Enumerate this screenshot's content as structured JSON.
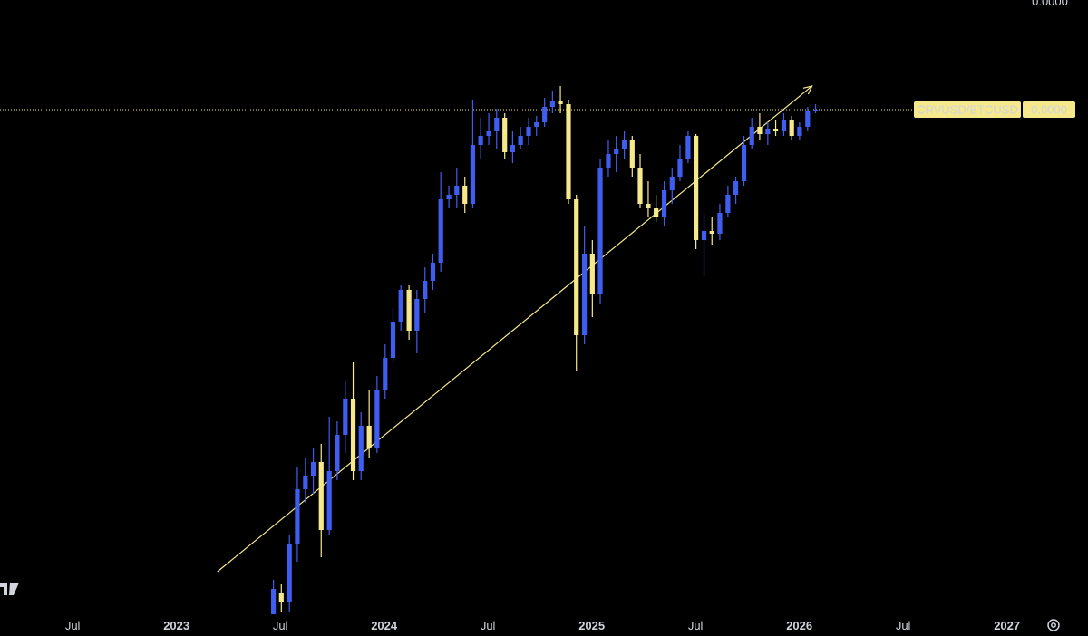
{
  "chart_data": {
    "type": "candlestick",
    "symbol": "CRVUSD/BTCUSD",
    "up_color": "#3f5ef0",
    "down_color": "#f6e98c",
    "xlim": [
      2022.15,
      2027.15
    ],
    "xticks": [
      {
        "value": 2022.5,
        "label": "Jul"
      },
      2023,
      {
        "value": 2023.5,
        "label": "Jul"
      },
      2024,
      {
        "value": 2024.5,
        "label": "Jul"
      },
      2025,
      {
        "value": 2025.5,
        "label": "Jul"
      },
      2026,
      {
        "value": 2026.5,
        "label": "Jul"
      },
      2027
    ],
    "ylim": [
      0,
      3.39e-05
    ],
    "yticks": [
      {
        "value": 3.38e-05,
        "label": "0.0000"
      }
    ],
    "last_price": 2.785e-05,
    "last_price_label": "0.0000",
    "trendline": {
      "x": [
        2023.197,
        2026.061
      ],
      "y": [
        2.35e-06,
        2.915e-05
      ],
      "color": "#f6e98c"
    },
    "x": [
      2023.467,
      2023.505,
      2023.544,
      2023.582,
      2023.621,
      2023.659,
      2023.697,
      2023.736,
      2023.774,
      2023.813,
      2023.851,
      2023.889,
      2023.928,
      2023.966,
      2024.005,
      2024.043,
      2024.081,
      2024.12,
      2024.158,
      2024.197,
      2024.235,
      2024.273,
      2024.312,
      2024.35,
      2024.389,
      2024.427,
      2024.465,
      2024.504,
      2024.542,
      2024.581,
      2024.619,
      2024.657,
      2024.696,
      2024.734,
      2024.773,
      2024.811,
      2024.849,
      2024.888,
      2024.926,
      2024.965,
      2025.003,
      2025.041,
      2025.08,
      2025.118,
      2025.157,
      2025.195,
      2025.233,
      2025.272,
      2025.31,
      2025.349,
      2025.387,
      2025.425,
      2025.464,
      2025.502,
      2025.541,
      2025.579,
      2025.617,
      2025.656,
      2025.694,
      2025.733,
      2025.771,
      2025.809,
      2025.848,
      2025.886,
      2025.925,
      2025.963,
      2026.001,
      2026.04,
      2026.078
    ],
    "open": [
      0,
      1.15e-06,
      6.5e-07,
      3.9e-06,
      6.9e-06,
      7.65e-06,
      8.4e-06,
      4.65e-06,
      7.9e-06,
      9.9e-06,
      1.19e-05,
      7.9e-06,
      1.04e-05,
      9.15e-06,
      1.24e-05,
      1.415e-05,
      1.615e-05,
      1.79e-05,
      1.565e-05,
      1.74e-05,
      1.84e-05,
      1.94e-05,
      2.29e-05,
      2.315e-05,
      2.365e-05,
      2.265e-05,
      2.59e-05,
      2.64e-05,
      2.665e-05,
      2.74e-05,
      2.55e-05,
      2.59e-05,
      2.64e-05,
      2.69e-05,
      2.715e-05,
      2.8e-05,
      2.83e-05,
      2.815e-05,
      2.29e-05,
      1.54e-05,
      1.99e-05,
      1.765e-05,
      2.465e-05,
      2.54e-05,
      2.565e-05,
      2.615e-05,
      2.465e-05,
      2.265e-05,
      2.24e-05,
      2.19e-05,
      2.34e-05,
      2.415e-05,
      2.515e-05,
      2.64e-05,
      2.065e-05,
      2.115e-05,
      2.1e-05,
      2.215e-05,
      2.315e-05,
      2.39e-05,
      2.59e-05,
      2.69e-05,
      2.65e-05,
      2.68e-05,
      2.665e-05,
      2.73e-05,
      2.64e-05,
      2.69e-05,
      2.78e-05
    ],
    "high": [
      1.9e-06,
      1.65e-06,
      4.4e-06,
      8.15e-06,
      8.65e-06,
      9.15e-06,
      9.4e-06,
      1.09e-05,
      1.065e-05,
      1.29e-05,
      1.39e-05,
      1.115e-05,
      1.24e-05,
      1.315e-05,
      1.49e-05,
      1.69e-05,
      1.815e-05,
      1.815e-05,
      1.79e-05,
      1.915e-05,
      1.99e-05,
      2.44e-05,
      2.365e-05,
      2.465e-05,
      2.415e-05,
      2.84e-05,
      2.74e-05,
      2.765e-05,
      2.79e-05,
      2.765e-05,
      2.665e-05,
      2.69e-05,
      2.74e-05,
      2.75e-05,
      2.85e-05,
      2.89e-05,
      2.915e-05,
      2.84e-05,
      2.315e-05,
      2.14e-05,
      2.065e-05,
      2.515e-05,
      2.615e-05,
      2.64e-05,
      2.665e-05,
      2.64e-05,
      2.54e-05,
      2.39e-05,
      2.315e-05,
      2.39e-05,
      2.465e-05,
      2.59e-05,
      2.665e-05,
      2.65e-05,
      2.215e-05,
      2.19e-05,
      2.265e-05,
      2.365e-05,
      2.415e-05,
      2.64e-05,
      2.74e-05,
      2.765e-05,
      2.715e-05,
      2.725e-05,
      2.765e-05,
      2.75e-05,
      2.715e-05,
      2.8e-05,
      2.815e-05
    ],
    "low": [
      0,
      1e-07,
      1e-07,
      2.9e-06,
      6.15e-06,
      6.65e-06,
      3.15e-06,
      4.4e-06,
      7.4e-06,
      8.9e-06,
      7.4e-06,
      7.4e-06,
      8.65e-06,
      8.9e-06,
      1.19e-05,
      1.39e-05,
      1.565e-05,
      1.515e-05,
      1.44e-05,
      1.665e-05,
      1.79e-05,
      1.89e-05,
      2.24e-05,
      2.24e-05,
      2.215e-05,
      2.24e-05,
      2.515e-05,
      2.59e-05,
      2.565e-05,
      2.515e-05,
      2.49e-05,
      2.565e-05,
      2.59e-05,
      2.64e-05,
      2.69e-05,
      2.765e-05,
      2.765e-05,
      2.265e-05,
      1.34e-05,
      1.49e-05,
      1.64e-05,
      1.715e-05,
      2.415e-05,
      2.44e-05,
      2.515e-05,
      2.415e-05,
      2.24e-05,
      2.19e-05,
      2.165e-05,
      2.14e-05,
      2.265e-05,
      2.39e-05,
      2.49e-05,
      2.015e-05,
      1.865e-05,
      2.04e-05,
      2.065e-05,
      2.19e-05,
      2.265e-05,
      2.365e-05,
      2.565e-05,
      2.615e-05,
      2.59e-05,
      2.64e-05,
      2.64e-05,
      2.615e-05,
      2.615e-05,
      2.665e-05,
      2.765e-05
    ],
    "close": [
      1.4e-06,
      6.5e-07,
      3.9e-06,
      6.9e-06,
      7.65e-06,
      8.4e-06,
      4.65e-06,
      7.9e-06,
      9.9e-06,
      1.19e-05,
      7.9e-06,
      1.04e-05,
      9.15e-06,
      1.24e-05,
      1.415e-05,
      1.615e-05,
      1.79e-05,
      1.565e-05,
      1.74e-05,
      1.84e-05,
      1.94e-05,
      2.29e-05,
      2.315e-05,
      2.365e-05,
      2.265e-05,
      2.59e-05,
      2.64e-05,
      2.665e-05,
      2.74e-05,
      2.55e-05,
      2.59e-05,
      2.64e-05,
      2.69e-05,
      2.715e-05,
      2.8e-05,
      2.83e-05,
      2.815e-05,
      2.29e-05,
      1.54e-05,
      1.99e-05,
      1.765e-05,
      2.465e-05,
      2.54e-05,
      2.565e-05,
      2.615e-05,
      2.465e-05,
      2.265e-05,
      2.24e-05,
      2.19e-05,
      2.34e-05,
      2.415e-05,
      2.515e-05,
      2.64e-05,
      2.065e-05,
      2.115e-05,
      2.1e-05,
      2.215e-05,
      2.315e-05,
      2.39e-05,
      2.59e-05,
      2.69e-05,
      2.65e-05,
      2.68e-05,
      2.665e-05,
      2.73e-05,
      2.64e-05,
      2.69e-05,
      2.78e-05,
      2.785e-05
    ]
  }
}
